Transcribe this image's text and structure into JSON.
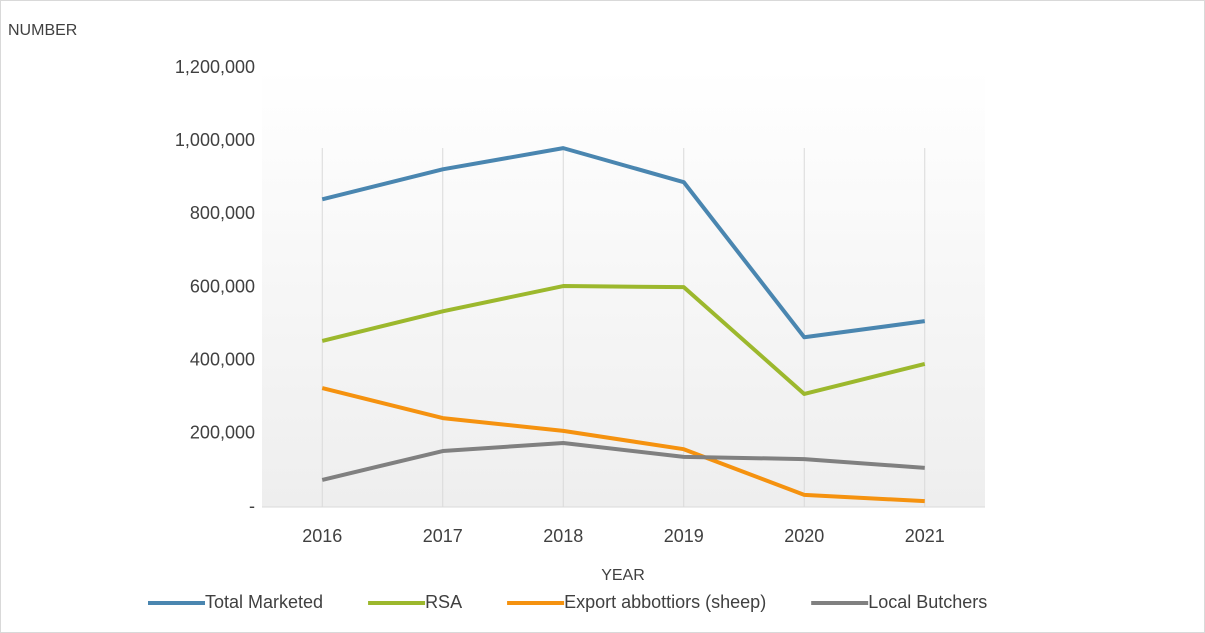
{
  "chart_data": {
    "type": "line",
    "y_label": "NUMBER",
    "x_label": "YEAR",
    "categories": [
      "2016",
      "2017",
      "2018",
      "2019",
      "2020",
      "2021"
    ],
    "series": [
      {
        "name": "Total Marketed",
        "color": "#4a86b0",
        "values": [
          841000,
          923000,
          981000,
          888000,
          464000,
          508000
        ]
      },
      {
        "name": "RSA",
        "color": "#9cb82d",
        "values": [
          454000,
          535000,
          604000,
          601000,
          309000,
          391000
        ]
      },
      {
        "name": "Export abbottiors (sheep)",
        "color": "#f5920f",
        "values": [
          325000,
          243000,
          208000,
          158000,
          33000,
          16000
        ]
      },
      {
        "name": "Local Butchers",
        "color": "#808080",
        "values": [
          74000,
          153000,
          175000,
          137000,
          131000,
          107000
        ]
      }
    ],
    "ylim": [
      0,
      1200000
    ],
    "yticks": [
      {
        "value": 0,
        "label": "-"
      },
      {
        "value": 200000,
        "label": "200,000"
      },
      {
        "value": 400000,
        "label": "400,000"
      },
      {
        "value": 600000,
        "label": "600,000"
      },
      {
        "value": 800000,
        "label": "800,000"
      },
      {
        "value": 1000000,
        "label": "1,000,000"
      },
      {
        "value": 1200000,
        "label": "1,200,000"
      }
    ],
    "grid": true,
    "legend": "bottom"
  }
}
